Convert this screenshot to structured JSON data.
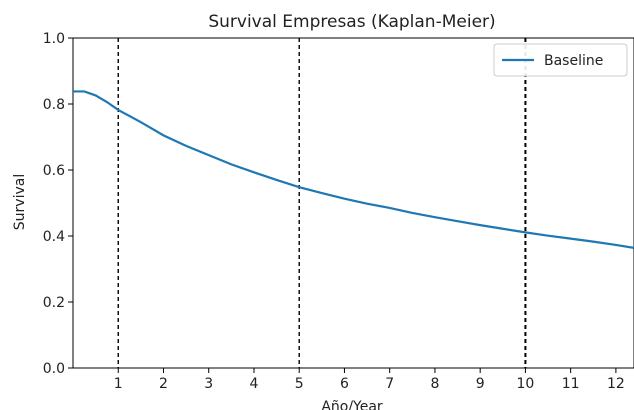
{
  "chart_data": {
    "type": "line",
    "title": "Survival Empresas (Kaplan-Meier)",
    "xlabel": "Año/Year",
    "ylabel": "Survival",
    "xlim": [
      0,
      12.4
    ],
    "ylim": [
      0.0,
      1.0
    ],
    "x_ticks": [
      1,
      2,
      3,
      4,
      5,
      6,
      7,
      8,
      9,
      10,
      11,
      12
    ],
    "y_ticks": [
      0.0,
      0.2,
      0.4,
      0.6,
      0.8,
      1.0
    ],
    "x_tick_labels": [
      "1",
      "2",
      "3",
      "4",
      "5",
      "6",
      "7",
      "8",
      "9",
      "10",
      "11",
      "12"
    ],
    "y_tick_labels": [
      "0.0",
      "0.2",
      "0.4",
      "0.6",
      "0.8",
      "1.0"
    ],
    "grid": false,
    "legend": {
      "position": "top-right"
    },
    "series": [
      {
        "name": "Baseline",
        "color": "#1f77b4",
        "x": [
          0,
          0.25,
          0.5,
          0.75,
          1,
          1.5,
          2,
          2.5,
          3,
          3.5,
          4,
          4.5,
          5,
          5.5,
          6,
          6.5,
          7,
          7.5,
          8,
          8.5,
          9,
          9.5,
          10,
          10.5,
          11,
          11.5,
          12,
          12.4
        ],
        "y": [
          0.838,
          0.838,
          0.826,
          0.806,
          0.782,
          0.745,
          0.705,
          0.673,
          0.645,
          0.617,
          0.593,
          0.57,
          0.548,
          0.53,
          0.513,
          0.498,
          0.485,
          0.47,
          0.457,
          0.445,
          0.433,
          0.422,
          0.411,
          0.401,
          0.392,
          0.383,
          0.373,
          0.364
        ]
      }
    ],
    "vlines": [
      {
        "x": 1,
        "style": "dashed"
      },
      {
        "x": 5,
        "style": "dashed"
      },
      {
        "x": 10,
        "style": "dashed"
      }
    ]
  }
}
